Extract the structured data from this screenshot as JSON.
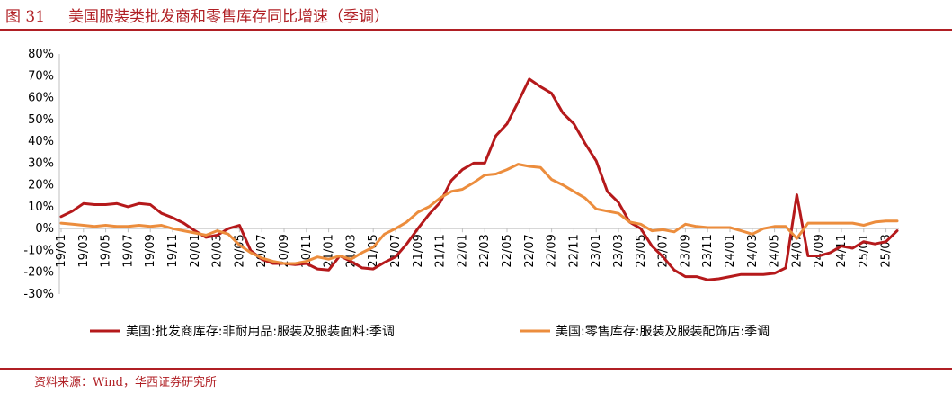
{
  "figure": {
    "number": "图 31",
    "title": "美国服装类批发商和零售库存同比增速（季调）",
    "source": "资料来源：Wind，华西证券研究所"
  },
  "chart_data": {
    "type": "line",
    "title": "美国服装类批发商和零售库存同比增速（季调）",
    "xlabel": "",
    "ylabel": "",
    "y_unit": "%",
    "ylim": [
      -30,
      80
    ],
    "y_ticks": [
      80,
      70,
      60,
      50,
      40,
      30,
      20,
      10,
      0,
      -10,
      -20,
      -30
    ],
    "y_tick_labels": [
      "80%",
      "70%",
      "60%",
      "50%",
      "40%",
      "30%",
      "20%",
      "10%",
      "0%",
      "-10%",
      "-20%",
      "-30%"
    ],
    "x_tick_labels": [
      "19/01",
      "19/03",
      "19/05",
      "19/07",
      "19/09",
      "19/11",
      "20/01",
      "20/03",
      "20/05",
      "20/07",
      "20/09",
      "20/11",
      "21/01",
      "21/03",
      "21/05",
      "21/07",
      "21/09",
      "21/11",
      "22/01",
      "22/03",
      "22/05",
      "22/07",
      "22/09",
      "22/11",
      "23/01",
      "23/03",
      "23/05",
      "23/07",
      "23/09",
      "23/11",
      "24/01",
      "24/03",
      "24/05",
      "24/07",
      "24/09",
      "24/11",
      "25/01",
      "25/03"
    ],
    "grid": false,
    "legend_position": "bottom",
    "x": [
      "19/01",
      "19/02",
      "19/03",
      "19/04",
      "19/05",
      "19/06",
      "19/07",
      "19/08",
      "19/09",
      "19/10",
      "19/11",
      "19/12",
      "20/01",
      "20/02",
      "20/03",
      "20/04",
      "20/05",
      "20/06",
      "20/07",
      "20/08",
      "20/09",
      "20/10",
      "20/11",
      "20/12",
      "21/01",
      "21/02",
      "21/03",
      "21/04",
      "21/05",
      "21/06",
      "21/07",
      "21/08",
      "21/09",
      "21/10",
      "21/11",
      "21/12",
      "22/01",
      "22/02",
      "22/03",
      "22/04",
      "22/05",
      "22/06",
      "22/07",
      "22/08",
      "22/09",
      "22/10",
      "22/11",
      "22/12",
      "23/01",
      "23/02",
      "23/03",
      "23/04",
      "23/05",
      "23/06",
      "23/07",
      "23/08",
      "23/09",
      "23/10",
      "23/11",
      "23/12",
      "24/01",
      "24/02",
      "24/03",
      "24/04",
      "24/05",
      "24/06",
      "24/07",
      "24/08",
      "24/09",
      "24/10",
      "24/11",
      "24/12",
      "25/01",
      "25/02",
      "25/03",
      "25/04"
    ],
    "series": [
      {
        "name": "美国:批发商库存:非耐用品:服装及服装面料:季调",
        "color": "#b5191b",
        "values": [
          5.5,
          8,
          11.5,
          11,
          11,
          11.5,
          10,
          11.5,
          11,
          7,
          5,
          2.5,
          -1,
          -4,
          -3,
          0,
          1.5,
          -10,
          -14,
          -16,
          -16,
          -16.5,
          -16,
          -18.5,
          -19,
          -12.5,
          -15,
          -18,
          -18.5,
          -15.5,
          -13,
          -7,
          0,
          6.5,
          12,
          22,
          27,
          30,
          30,
          42.5,
          48,
          58,
          68.5,
          65,
          62,
          53,
          48,
          39,
          31,
          17,
          12,
          3,
          0,
          -8,
          -13,
          -19,
          -22,
          -22,
          -23.5,
          -23,
          -22,
          -21,
          -21,
          -21,
          -20.5,
          -18,
          15.5,
          -12.5,
          -12.5,
          -11,
          -8,
          -9,
          -6,
          -7,
          -6,
          -1
        ]
      },
      {
        "name": "美国:零售库存:服装及服装配饰店:季调",
        "color": "#ec8d3d",
        "values": [
          2.5,
          2,
          1.5,
          1,
          1.5,
          1,
          1,
          1.5,
          1,
          1.5,
          0,
          -1,
          -2,
          -3,
          -1,
          -2.5,
          -7.5,
          -11,
          -13.5,
          -15,
          -16,
          -16,
          -15,
          -13,
          -14,
          -12.5,
          -14,
          -11,
          -8.5,
          -2.5,
          0,
          3,
          7.5,
          10,
          14,
          17,
          18,
          21,
          24.5,
          25,
          27,
          29.5,
          28.5,
          28,
          22.5,
          20,
          17,
          14,
          9,
          8,
          7,
          3,
          2,
          -1,
          -0.5,
          -1.5,
          2,
          1,
          0.5,
          0.5,
          0.5,
          -1,
          -2.5,
          0,
          1,
          1,
          -4.5,
          2.5,
          2.5,
          2.5,
          2.5,
          2.5,
          1.5,
          3,
          3.5,
          3.5
        ]
      }
    ]
  }
}
